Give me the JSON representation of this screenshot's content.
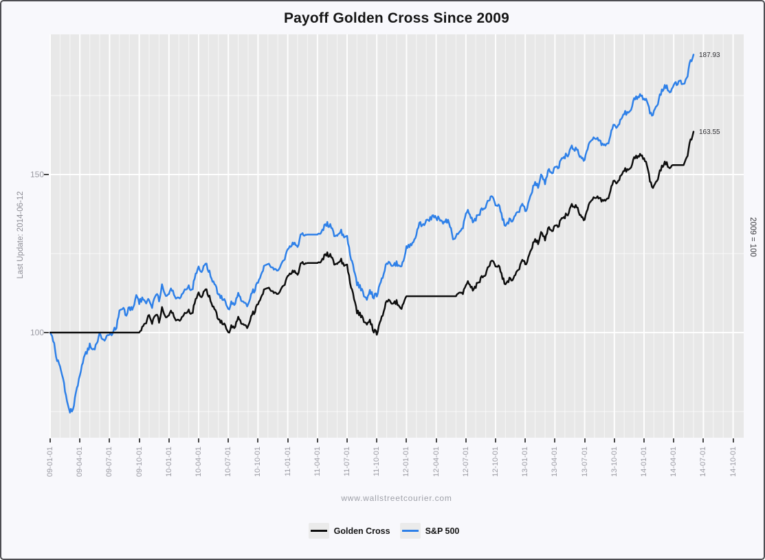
{
  "chart_data": {
    "type": "line",
    "title": "Payoff Golden Cross Since 2009",
    "left_note": "Last Update: 2014-06-12",
    "right_note": "2009 = 100",
    "watermark": "www.wallstreetcourier.com",
    "legend_position": "bottom",
    "grid": true,
    "panel_color": "#e8e8e8",
    "grid_color": "#ffffff",
    "tick_label_color": "#9b9ba3",
    "x_unit": "months starting 2009-01-01, one value per month start",
    "x_tick_labels": [
      "09-01-01",
      "09-04-01",
      "09-07-01",
      "09-10-01",
      "10-01-01",
      "10-04-01",
      "10-07-01",
      "10-10-01",
      "11-01-01",
      "11-04-01",
      "11-07-01",
      "11-10-01",
      "12-01-01",
      "12-04-01",
      "12-07-01",
      "12-10-01",
      "13-01-01",
      "13-04-01",
      "13-07-01",
      "13-10-01",
      "14-01-01",
      "14-04-01",
      "14-07-01",
      "14-10-01"
    ],
    "y_ticks": [
      100,
      150
    ],
    "y_minor_gridlines": [
      75,
      125,
      175
    ],
    "ylim": [
      67,
      194
    ],
    "series": [
      {
        "name": "Golden Cross",
        "color": "#0d0d0d",
        "end_label": "163.55",
        "end_value": 163.55,
        "monthly_values": [
          100,
          100,
          100,
          100,
          100,
          100,
          100,
          100,
          100,
          100,
          104,
          105.5,
          107.5,
          103.5,
          106,
          111,
          113,
          105,
          101,
          104.5,
          103,
          110.5,
          113.5,
          113,
          118,
          120,
          122,
          122,
          124.5,
          122.5,
          121,
          107,
          104,
          98.5,
          111,
          108,
          111.5,
          111.5,
          111.5,
          111.5,
          111.5,
          111.5,
          113.5,
          116,
          120,
          122.5,
          115.5,
          119.5,
          123,
          129,
          131,
          133.5,
          136.5,
          140,
          136,
          144,
          141.5,
          146.5,
          151.5,
          154,
          156.5,
          144.5,
          152.5,
          153,
          153,
          163.55
        ]
      },
      {
        "name": "S&P 500",
        "color": "#2e80e8",
        "end_label": "187.93",
        "end_value": 187.93,
        "monthly_values": [
          100,
          89,
          73,
          88,
          94.5,
          97.5,
          99,
          105.5,
          108,
          110.5,
          108.5,
          112.5,
          114.5,
          110.5,
          113.5,
          119,
          121,
          113,
          108.5,
          112,
          110,
          117.5,
          121,
          120.5,
          126.5,
          129,
          131,
          131,
          134,
          131.5,
          130,
          116,
          112,
          110.5,
          123,
          120,
          127,
          132,
          136,
          138.5,
          136,
          128.5,
          136,
          137.5,
          141.5,
          142,
          134,
          138.5,
          140,
          147,
          149,
          152,
          155.5,
          158,
          155,
          163,
          159,
          164,
          169.5,
          172.5,
          175.5,
          168,
          176.5,
          177.5,
          179.5,
          187.93
        ]
      }
    ]
  }
}
